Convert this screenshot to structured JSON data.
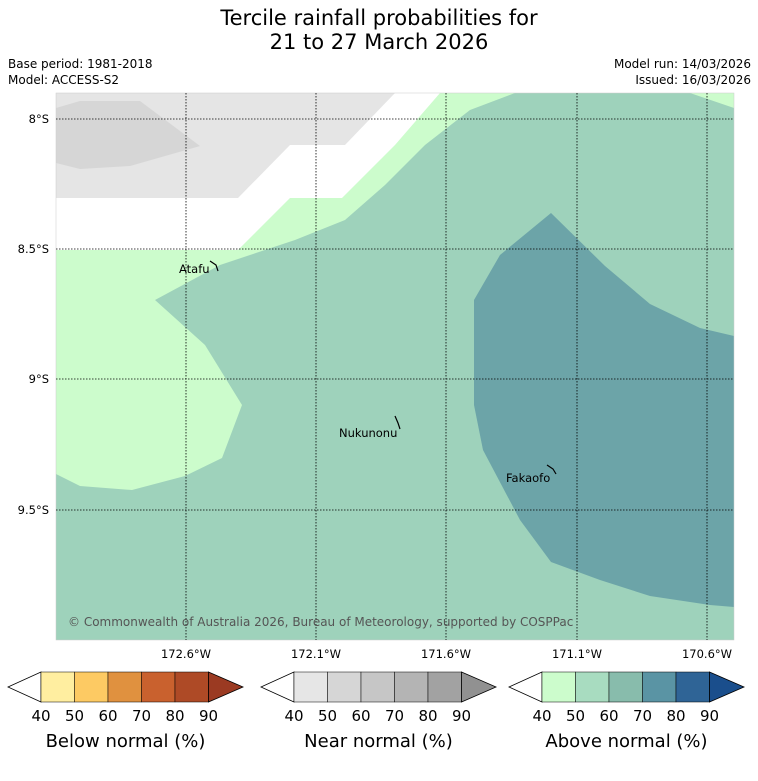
{
  "title_line1": "Tercile rainfall probabilities for",
  "title_line2": "21 to 27 March 2026",
  "meta": {
    "base_period": "Base period: 1981-2018",
    "model": "Model: ACCESS-S2",
    "model_run": "Model run: 14/03/2026",
    "issued": "Issued: 16/03/2026"
  },
  "copyright": "© Commonwealth of Australia 2026, Bureau of Meteorology, supported by COSPPac",
  "lat_labels": [
    "8°S",
    "8.5°S",
    "9°S",
    "9.5°S"
  ],
  "lon_labels": [
    "172.6°W",
    "172.1°W",
    "171.6°W",
    "171.1°W",
    "170.6°W"
  ],
  "places": [
    {
      "name": "Atafu"
    },
    {
      "name": "Nukunonu"
    },
    {
      "name": "Fakaofo"
    }
  ],
  "colorbars": [
    {
      "label": "Below normal (%)",
      "ticks": [
        "40",
        "50",
        "60",
        "70",
        "80",
        "90"
      ],
      "colors": [
        "#ffeea0",
        "#fdca63",
        "#e0913f",
        "#c9612e",
        "#ae4a26",
        "#9b3a22"
      ]
    },
    {
      "label": "Near normal (%)",
      "ticks": [
        "40",
        "50",
        "60",
        "70",
        "80",
        "90"
      ],
      "colors": [
        "#e6e6e6",
        "#d6d6d6",
        "#c6c6c6",
        "#b4b4b4",
        "#a2a2a2",
        "#919191"
      ]
    },
    {
      "label": "Above normal (%)",
      "ticks": [
        "40",
        "50",
        "60",
        "70",
        "80",
        "90"
      ],
      "colors": [
        "#ccfccc",
        "#a8dcc0",
        "#88bcac",
        "#5a94a4",
        "#2f6496",
        "#1a4e8c"
      ]
    }
  ],
  "colors": {
    "above_40": "#ccfccc",
    "above_50": "#9ed2bb",
    "above_60": "#6ca4a8",
    "near_40": "#e5e5e5",
    "near_50": "#d6d6d6"
  }
}
